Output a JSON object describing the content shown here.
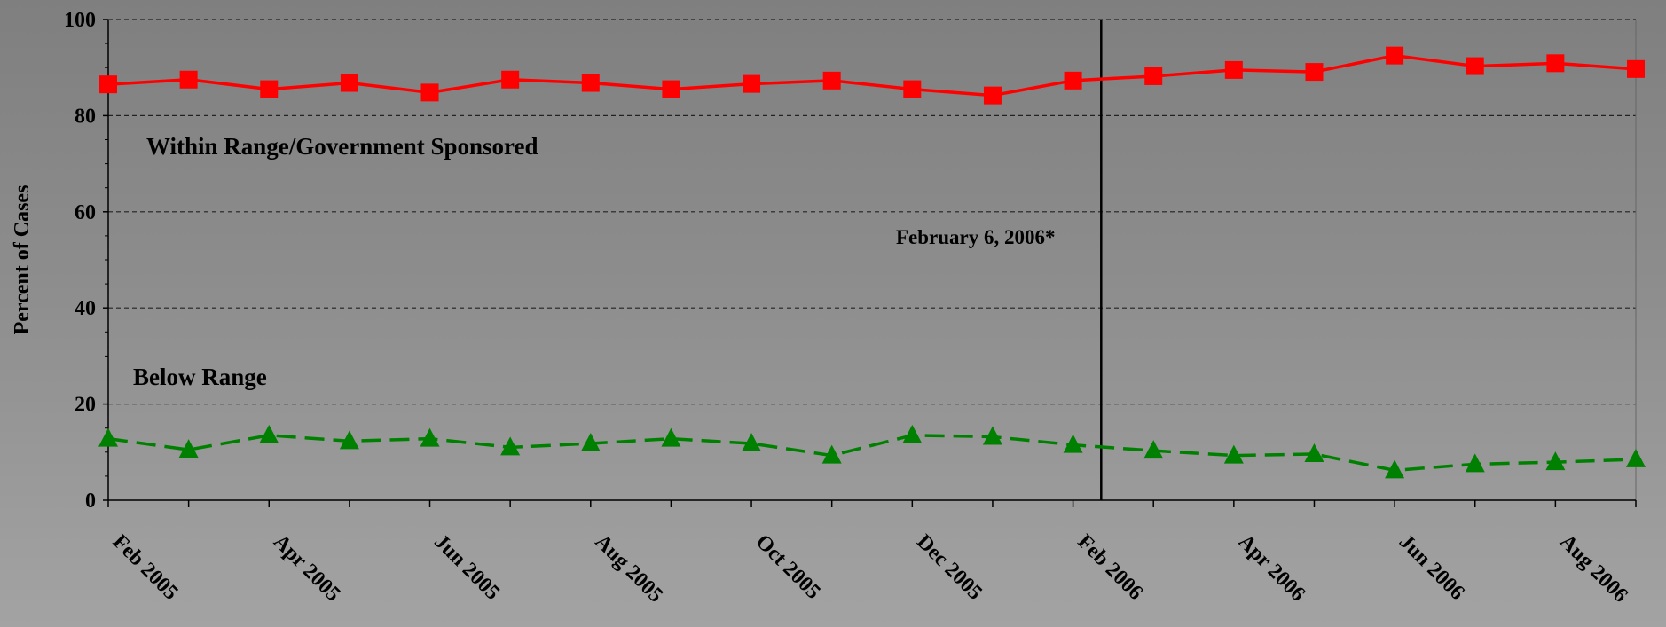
{
  "chart_data": {
    "type": "line",
    "categories": [
      "Feb 2005",
      "Mar 2005",
      "Apr 2005",
      "May 2005",
      "Jun 2005",
      "Jul 2005",
      "Aug 2005",
      "Sep 2005",
      "Oct 2005",
      "Nov 2005",
      "Dec 2005",
      "Jan 2006",
      "Feb 2006",
      "Mar 2006",
      "Apr 2006",
      "May 2006",
      "Jun 2006",
      "Jul 2006",
      "Aug 2006",
      "Sep 2006"
    ],
    "x_tick_labels": [
      "Feb 2005",
      "Apr 2005",
      "Jun 2005",
      "Aug 2005",
      "Oct 2005",
      "Dec 2005",
      "Feb 2006",
      "Apr 2006",
      "Jun 2006",
      "Aug 2006"
    ],
    "ylabel": "Percent of Cases",
    "ylim": [
      0,
      100
    ],
    "yticks": [
      0,
      20,
      40,
      60,
      80,
      100
    ],
    "grid": "horizontal-dashed",
    "series": [
      {
        "values": [
          86.5,
          87.5,
          85.5,
          86.8,
          84.8,
          87.5,
          86.8,
          85.5,
          86.6,
          87.3,
          85.5,
          84.2,
          87.3,
          88.2,
          89.5,
          89.1,
          92.5,
          90.3,
          90.9,
          89.7
        ],
        "color": "#ff0000",
        "marker": "square",
        "line_style": "solid"
      },
      {
        "values": [
          12.8,
          10.5,
          13.5,
          12.3,
          12.8,
          11.0,
          11.8,
          12.8,
          11.8,
          9.3,
          13.5,
          13.2,
          11.5,
          10.3,
          9.3,
          9.6,
          6.2,
          7.5,
          7.9,
          8.5
        ],
        "color": "#008000",
        "marker": "triangle",
        "line_style": "dashed"
      }
    ],
    "annotations": [
      {
        "text": "Within Range/Government Sponsored"
      },
      {
        "text": "Below Range"
      },
      {
        "text": "February 6, 2006*"
      }
    ],
    "reference_line": {
      "category": "Feb 2006",
      "fraction_after": 0.35
    }
  }
}
